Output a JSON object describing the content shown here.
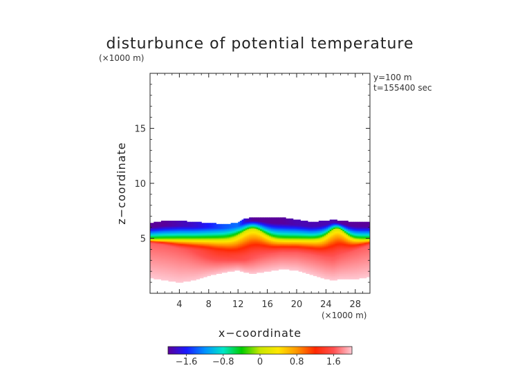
{
  "chart_data": {
    "type": "heatmap",
    "title": "disturbunce of potential temperature",
    "y_unit": "(×1000 m)",
    "x_unit": "(×1000 m)",
    "xlabel": "x−coordinate",
    "ylabel": "z−coordinate",
    "annotations": [
      "y=100 m",
      "t=155400 sec"
    ],
    "xlim": [
      0,
      30
    ],
    "ylim": [
      0,
      20
    ],
    "x_ticks": [
      4,
      8,
      12,
      16,
      20,
      24,
      28
    ],
    "x_tick_labels": [
      "4",
      "8",
      "12",
      "16",
      "20",
      "24",
      "28"
    ],
    "y_ticks": [
      5,
      10,
      15
    ],
    "y_tick_labels": [
      "5",
      "10",
      "15"
    ],
    "colorbar": {
      "range": [
        -2.0,
        2.0
      ],
      "ticks": [
        -1.6,
        -0.8,
        0,
        0.8,
        1.6
      ],
      "tick_labels": [
        "−1.6",
        "−0.8",
        "0",
        "0.8",
        "1.6"
      ],
      "colors": [
        "#5a009a",
        "#1a1aff",
        "#0090ff",
        "#00e6c8",
        "#00cc00",
        "#c8e600",
        "#ffe600",
        "#ff9600",
        "#ff2800",
        "#ff5050",
        "#ffc8d2"
      ]
    },
    "field": {
      "x": [
        0,
        2,
        4,
        6,
        8,
        10,
        12,
        13,
        14,
        16,
        18,
        20,
        22,
        24,
        25,
        26,
        28,
        30
      ],
      "top_z": [
        6.4,
        6.6,
        6.6,
        6.5,
        6.4,
        6.3,
        6.4,
        6.8,
        6.9,
        6.9,
        6.9,
        6.7,
        6.5,
        6.6,
        6.7,
        6.6,
        6.5,
        6.5
      ],
      "cold_min": [
        -2.0,
        -2.0,
        -1.9,
        -1.8,
        -1.6,
        -1.4,
        -1.3,
        -1.8,
        -2.0,
        -2.0,
        -2.0,
        -1.9,
        -1.9,
        -1.9,
        -1.9,
        -2.0,
        -2.0,
        -2.0
      ],
      "warm_core_z": [
        4.6,
        4.4,
        4.1,
        3.9,
        3.8,
        3.6,
        3.2,
        3.1,
        3.2,
        3.5,
        3.7,
        3.7,
        3.5,
        3.2,
        3.1,
        3.4,
        3.9,
        4.4
      ],
      "warm_base_z": [
        1.4,
        1.2,
        1.0,
        1.2,
        1.6,
        1.9,
        2.1,
        1.9,
        1.8,
        2.0,
        2.2,
        2.1,
        1.7,
        1.3,
        1.2,
        1.3,
        1.3,
        1.5
      ],
      "intrusion_bumps": [
        {
          "x": 14,
          "z": 5.6,
          "width": 2.0
        },
        {
          "x": 25.5,
          "z": 5.6,
          "width": 1.5
        }
      ]
    }
  }
}
